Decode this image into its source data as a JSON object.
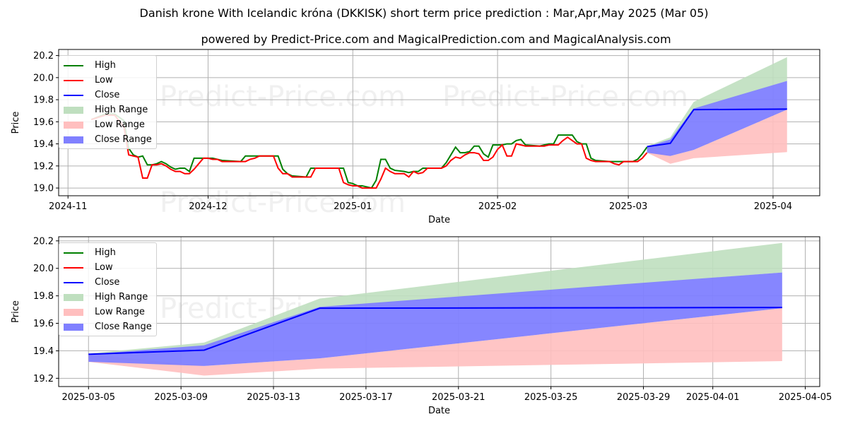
{
  "title": "Danish krone With Icelandic króna (DKKISK) short term price prediction : Mar,Apr,May 2025 (Mar 05)",
  "subtitle": "powered by Predict-Price.com and MagicalPrediction.com and MagicalAnalysis.com",
  "watermark": "Predict-Price.com",
  "colors": {
    "high": "#008000",
    "low": "#ff0000",
    "close": "#0000ff",
    "high_range": "#bfdfbf",
    "low_range": "#ffbfbf",
    "close_range": "#8080ff"
  },
  "legend": [
    "High",
    "Low",
    "Close",
    "High Range",
    "Low Range",
    "Close Range"
  ],
  "chart_data": [
    {
      "type": "line",
      "panel": "top",
      "xlabel": "Date",
      "ylabel": "Price",
      "xlim": [
        "2024-10-30",
        "2025-04-11"
      ],
      "ylim": [
        18.93,
        20.255
      ],
      "yticks": [
        "19.0",
        "19.2",
        "19.4",
        "19.6",
        "19.8",
        "20.0",
        "20.2"
      ],
      "xticks": [
        {
          "date": "2024-11-01",
          "label": "2024-11"
        },
        {
          "date": "2024-12-01",
          "label": "2024-12"
        },
        {
          "date": "2025-01-01",
          "label": "2025-01"
        },
        {
          "date": "2025-02-01",
          "label": "2025-02"
        },
        {
          "date": "2025-03-01",
          "label": "2025-03"
        },
        {
          "date": "2025-04-01",
          "label": "2025-04"
        }
      ],
      "grid": true,
      "legend_position": "upper-left",
      "show_history": true
    },
    {
      "type": "line",
      "panel": "bottom",
      "xlabel": "Date",
      "ylabel": "Price",
      "xlim": [
        "2025-03-03T17:00",
        "2025-04-05T15:00"
      ],
      "ylim": [
        19.14,
        20.23
      ],
      "yticks": [
        "19.2",
        "19.4",
        "19.6",
        "19.8",
        "20.0",
        "20.2"
      ],
      "xticks": [
        {
          "date": "2025-03-05",
          "label": "2025-03-05"
        },
        {
          "date": "2025-03-09",
          "label": "2025-03-09"
        },
        {
          "date": "2025-03-13",
          "label": "2025-03-13"
        },
        {
          "date": "2025-03-17",
          "label": "2025-03-17"
        },
        {
          "date": "2025-03-21",
          "label": "2025-03-21"
        },
        {
          "date": "2025-03-25",
          "label": "2025-03-25"
        },
        {
          "date": "2025-03-29",
          "label": "2025-03-29"
        },
        {
          "date": "2025-04-01",
          "label": "2025-04-01"
        },
        {
          "date": "2025-04-05",
          "label": "2025-04-05"
        }
      ],
      "grid": true,
      "legend_position": "upper-left",
      "show_history": false
    }
  ],
  "history": {
    "columns": [
      "date",
      "high",
      "low"
    ],
    "rows": [
      [
        "2024-11-06",
        19.62,
        19.62
      ],
      [
        "2024-11-09",
        19.67,
        19.66
      ],
      [
        "2024-11-11",
        19.67,
        19.66
      ],
      [
        "2024-11-13",
        19.61,
        19.55
      ],
      [
        "2024-11-14",
        19.36,
        19.3
      ],
      [
        "2024-11-15",
        19.3,
        19.29
      ],
      [
        "2024-11-16",
        19.28,
        19.28
      ],
      [
        "2024-11-17",
        19.29,
        19.09
      ],
      [
        "2024-11-18",
        19.21,
        19.09
      ],
      [
        "2024-11-19",
        19.21,
        19.21
      ],
      [
        "2024-11-20",
        19.22,
        19.21
      ],
      [
        "2024-11-21",
        19.24,
        19.22
      ],
      [
        "2024-11-22",
        19.22,
        19.2
      ],
      [
        "2024-11-23",
        19.19,
        19.17
      ],
      [
        "2024-11-24",
        19.17,
        19.15
      ],
      [
        "2024-11-25",
        19.18,
        19.15
      ],
      [
        "2024-11-26",
        19.18,
        19.13
      ],
      [
        "2024-11-27",
        19.15,
        19.13
      ],
      [
        "2024-11-28",
        19.27,
        19.17
      ],
      [
        "2024-11-29",
        19.27,
        19.22
      ],
      [
        "2024-11-30",
        19.27,
        19.27
      ],
      [
        "2024-12-01",
        19.27,
        19.27
      ],
      [
        "2024-12-02",
        19.27,
        19.26
      ],
      [
        "2024-12-03",
        19.26,
        19.26
      ],
      [
        "2024-12-04",
        19.25,
        19.24
      ],
      [
        "2024-12-08",
        19.24,
        19.24
      ],
      [
        "2024-12-09",
        19.29,
        19.24
      ],
      [
        "2024-12-10",
        19.29,
        19.26
      ],
      [
        "2024-12-11",
        19.29,
        19.27
      ],
      [
        "2024-12-12",
        19.29,
        19.29
      ],
      [
        "2024-12-15",
        19.29,
        19.29
      ],
      [
        "2024-12-16",
        19.29,
        19.18
      ],
      [
        "2024-12-17",
        19.17,
        19.13
      ],
      [
        "2024-12-18",
        19.13,
        19.13
      ],
      [
        "2024-12-19",
        19.11,
        19.1
      ],
      [
        "2024-12-22",
        19.1,
        19.1
      ],
      [
        "2024-12-23",
        19.18,
        19.1
      ],
      [
        "2024-12-24",
        19.18,
        19.18
      ],
      [
        "2024-12-29",
        19.18,
        19.18
      ],
      [
        "2024-12-30",
        19.18,
        19.05
      ],
      [
        "2024-12-31",
        19.05,
        19.03
      ],
      [
        "2025-01-01",
        19.04,
        19.02
      ],
      [
        "2025-01-02",
        19.02,
        19.02
      ],
      [
        "2025-01-03",
        19.02,
        19.0
      ],
      [
        "2025-01-04",
        19.01,
        19.0
      ],
      [
        "2025-01-05",
        19.0,
        19.0
      ],
      [
        "2025-01-06",
        19.07,
        19.0
      ],
      [
        "2025-01-07",
        19.26,
        19.08
      ],
      [
        "2025-01-08",
        19.26,
        19.18
      ],
      [
        "2025-01-09",
        19.18,
        19.15
      ],
      [
        "2025-01-10",
        19.16,
        19.13
      ],
      [
        "2025-01-12",
        19.15,
        19.13
      ],
      [
        "2025-01-13",
        19.14,
        19.1
      ],
      [
        "2025-01-14",
        19.15,
        19.15
      ],
      [
        "2025-01-15",
        19.15,
        19.13
      ],
      [
        "2025-01-16",
        19.18,
        19.14
      ],
      [
        "2025-01-17",
        19.18,
        19.18
      ],
      [
        "2025-01-20",
        19.18,
        19.18
      ],
      [
        "2025-01-21",
        19.23,
        19.2
      ],
      [
        "2025-01-22",
        19.3,
        19.25
      ],
      [
        "2025-01-23",
        19.37,
        19.28
      ],
      [
        "2025-01-24",
        19.32,
        19.27
      ],
      [
        "2025-01-25",
        19.32,
        19.3
      ],
      [
        "2025-01-26",
        19.33,
        19.32
      ],
      [
        "2025-01-27",
        19.38,
        19.32
      ],
      [
        "2025-01-28",
        19.38,
        19.31
      ],
      [
        "2025-01-29",
        19.31,
        19.25
      ],
      [
        "2025-01-30",
        19.28,
        19.25
      ],
      [
        "2025-01-31",
        19.39,
        19.28
      ],
      [
        "2025-02-01",
        19.39,
        19.35
      ],
      [
        "2025-02-02",
        19.39,
        19.39
      ],
      [
        "2025-02-03",
        19.4,
        19.29
      ],
      [
        "2025-02-04",
        19.4,
        19.29
      ],
      [
        "2025-02-05",
        19.43,
        19.4
      ],
      [
        "2025-02-06",
        19.44,
        19.39
      ],
      [
        "2025-02-07",
        19.39,
        19.38
      ],
      [
        "2025-02-10",
        19.38,
        19.38
      ],
      [
        "2025-02-11",
        19.39,
        19.38
      ],
      [
        "2025-02-12",
        19.4,
        19.39
      ],
      [
        "2025-02-13",
        19.4,
        19.39
      ],
      [
        "2025-02-14",
        19.48,
        19.39
      ],
      [
        "2025-02-15",
        19.48,
        19.43
      ],
      [
        "2025-02-16",
        19.48,
        19.46
      ],
      [
        "2025-02-17",
        19.48,
        19.43
      ],
      [
        "2025-02-18",
        19.42,
        19.4
      ],
      [
        "2025-02-19",
        19.4,
        19.4
      ],
      [
        "2025-02-20",
        19.4,
        19.27
      ],
      [
        "2025-02-21",
        19.27,
        19.25
      ],
      [
        "2025-02-22",
        19.25,
        19.24
      ],
      [
        "2025-02-25",
        19.24,
        19.24
      ],
      [
        "2025-02-26",
        19.24,
        19.22
      ],
      [
        "2025-02-27",
        19.24,
        19.21
      ],
      [
        "2025-02-28",
        19.24,
        19.24
      ],
      [
        "2025-03-02",
        19.24,
        19.24
      ],
      [
        "2025-03-03",
        19.26,
        19.24
      ],
      [
        "2025-03-04",
        19.31,
        19.27
      ],
      [
        "2025-03-05",
        19.37,
        19.32
      ]
    ]
  },
  "forecast": {
    "columns": [
      "date",
      "close",
      "high_range",
      "low_range",
      "close_range"
    ],
    "rows": [
      [
        "2025-03-05",
        19.375,
        [
          19.375,
          19.38
        ],
        [
          19.32,
          19.375
        ],
        [
          19.32,
          19.375
        ]
      ],
      [
        "2025-03-10",
        19.405,
        [
          19.4,
          19.46
        ],
        [
          19.22,
          19.29
        ],
        [
          19.29,
          19.44
        ]
      ],
      [
        "2025-03-15",
        19.71,
        [
          19.71,
          19.78
        ],
        [
          19.27,
          19.345
        ],
        [
          19.345,
          19.72
        ]
      ],
      [
        "2025-04-04",
        19.715,
        [
          19.97,
          20.185
        ],
        [
          19.325,
          19.71
        ],
        [
          19.71,
          19.97
        ]
      ]
    ]
  }
}
